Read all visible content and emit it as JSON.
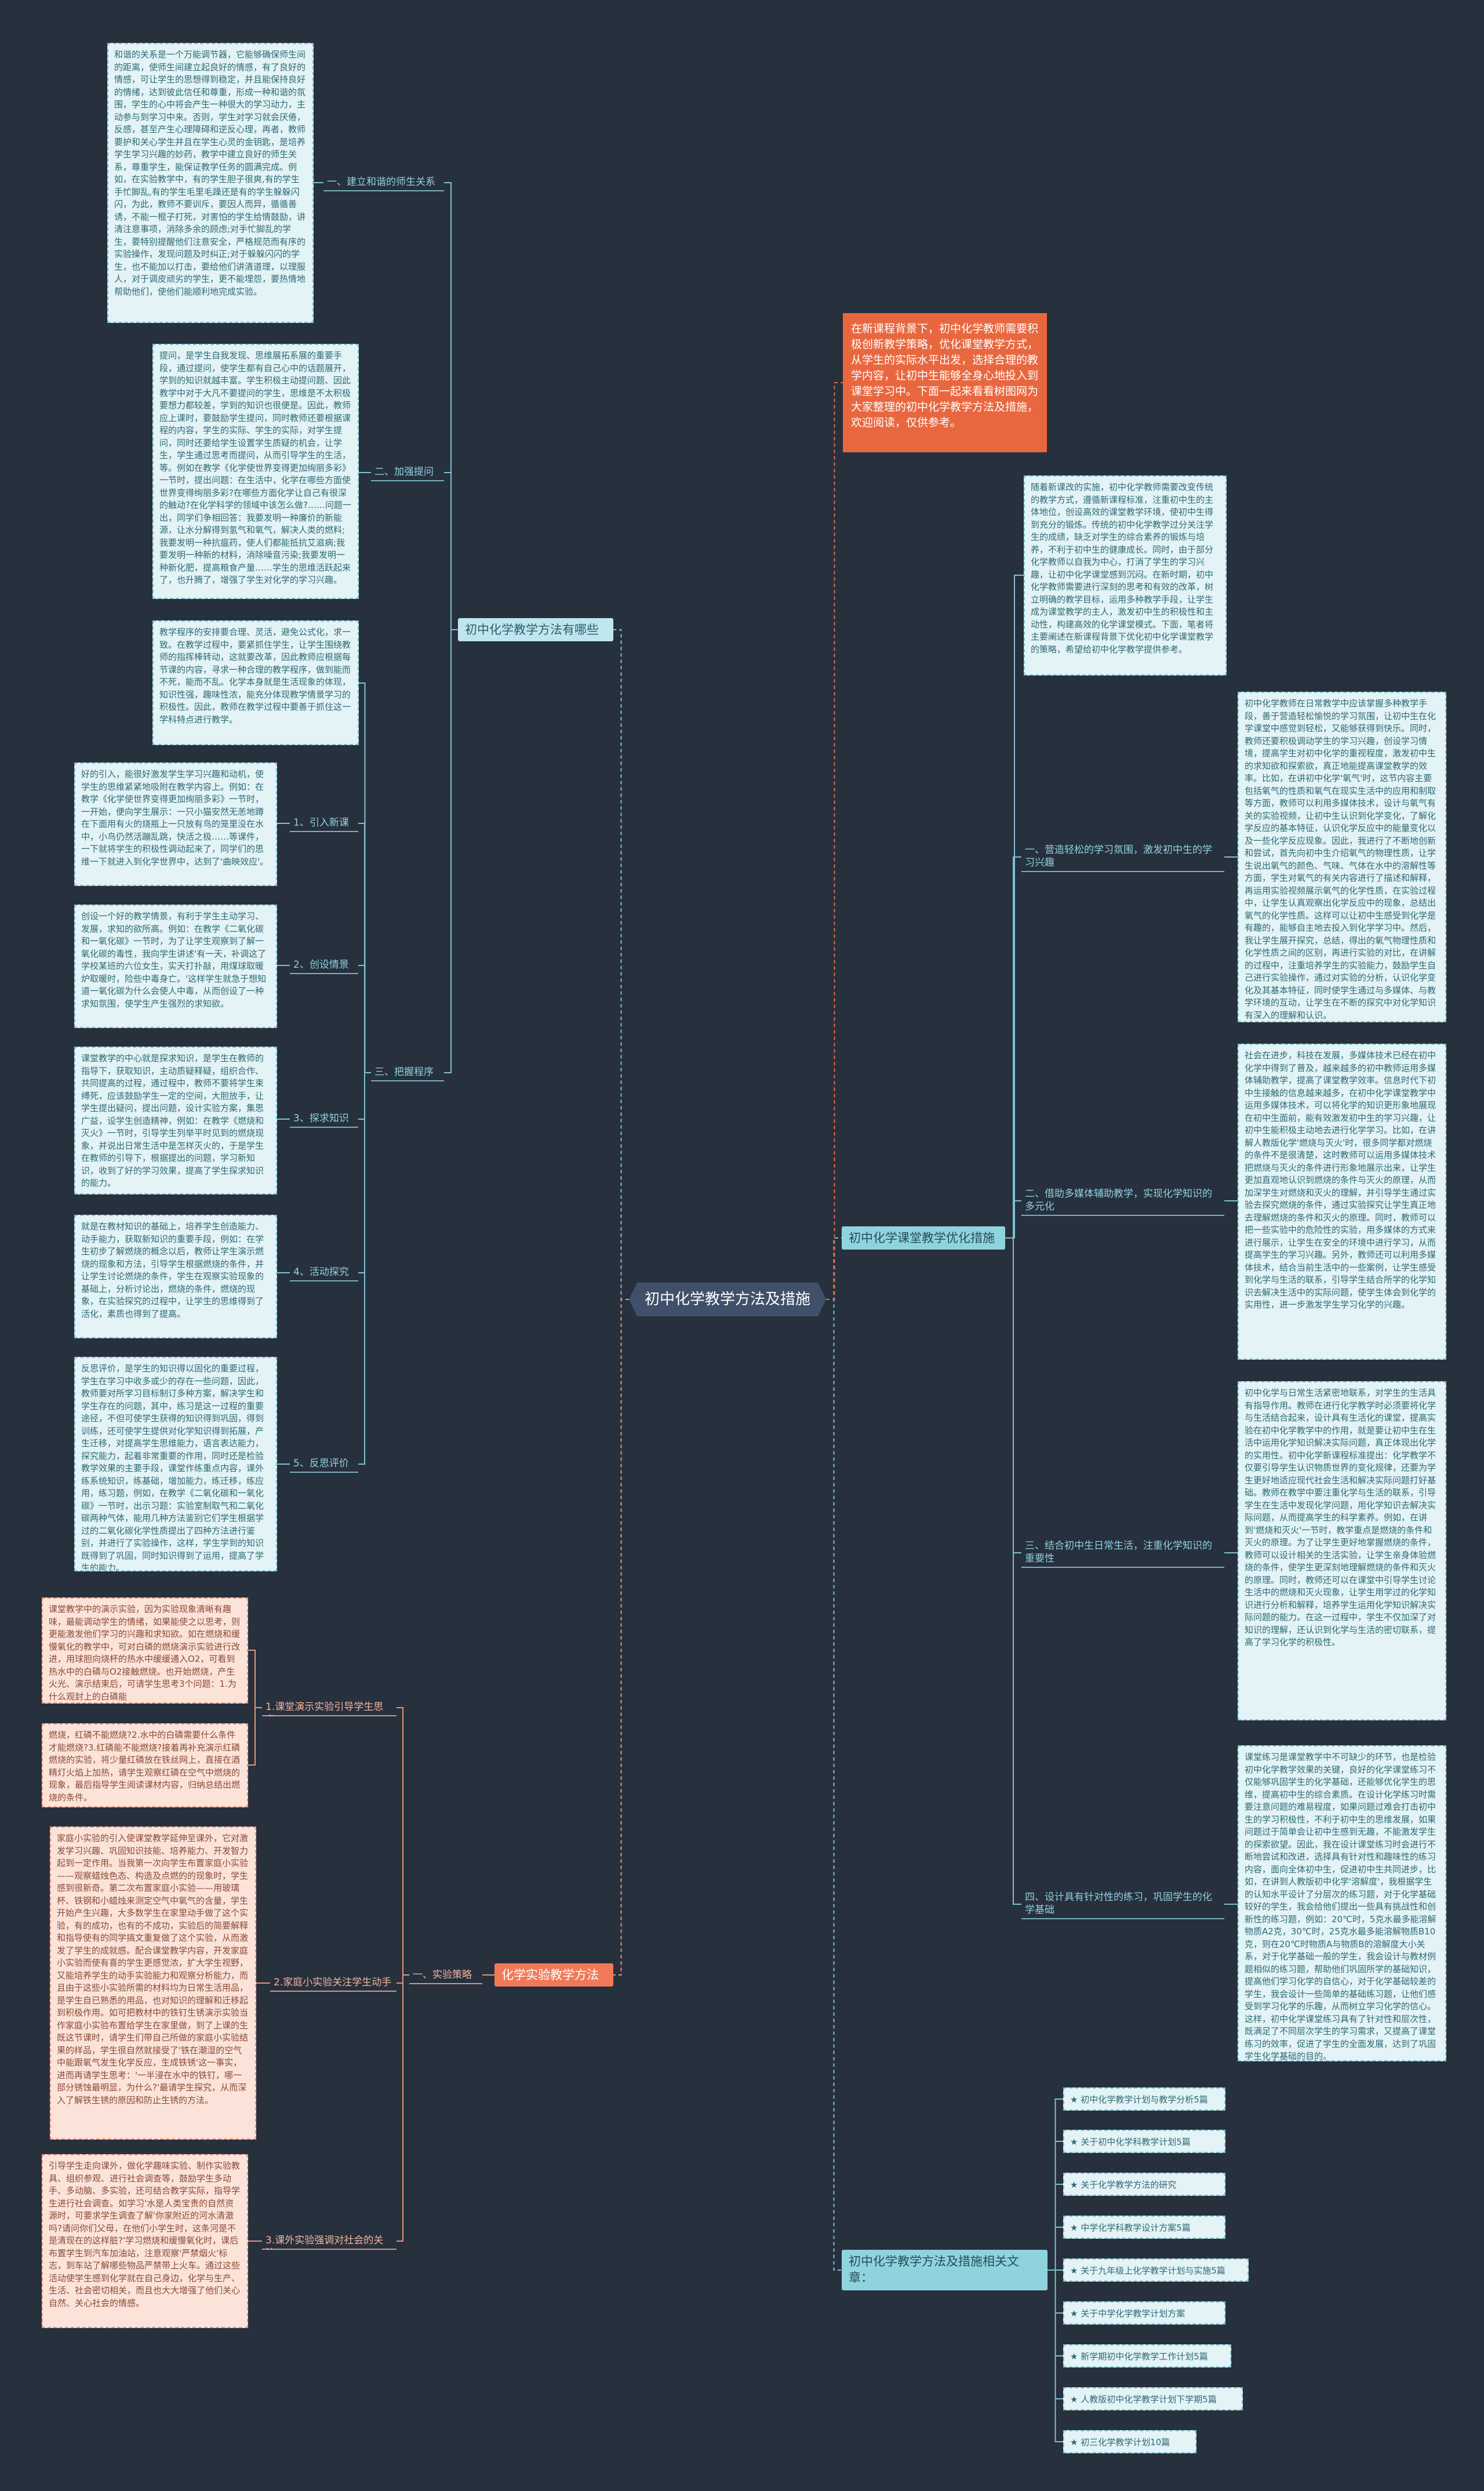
{
  "center": "初中化学教学方法及措施",
  "intro": "在新课程背景下，初中化学教师需要积极创新教学策略，优化课堂教学方式，从学生的实际水平出发，选择合理的教学内容，让初中生能够全身心地投入到课堂学习中。下面一起来看看树图网为大家整理的初中化学教学方法及措施，欢迎阅读，仅供参考。",
  "left": {
    "methods": {
      "title": "初中化学教学方法有哪些",
      "sub1": {
        "label": "一、建立和谐的师生关系",
        "text": "和谐的关系是一个万能调节器，它能够确保师生间的距离，使师生间建立起良好的情感，有了良好的情感，可让学生的思想得到稳定，并且能保持良好的情绪，达到彼此信任和尊重，形成一种和谐的氛围，学生的心中将会产生一种很大的学习动力，主动参与到学习中来。否则，学生对学习就会厌倦，反感，甚至产生心理障碍和逆反心理，再者，教师要护和关心学生并且在学生心灵的金钥匙，是培养学生学习兴趣的妙药，教学中建立良好的师生关系，尊重学生，能保证教学任务的圆满完成。例如，在实验教学中，有的学生胆子很爽,有的学生手忙脚乱,有的学生毛里毛躁还是有的学生躲躲闪闪，为此，教师不要训斥，要因人而异，循循善诱，不能一棍子打死，对害怕的学生给情鼓励，讲清注意事项，消除多余的顾虑;对手忙脚乱的学生，要特别提醒他们注意安全，严格规范而有序的实验操作，发现问题及时纠正;对于躲躲闪闪的学生，也不能加以打击，要给他们讲清道理，以理服人，对于调皮顽劣的学生，更不能埋怨，要热情地帮助他们，使他们能顺利地完成实验。"
      },
      "sub2": {
        "label": "二、加强提问",
        "text": "提问，是学生自我发现、思维展拓系展的重要手段，通过提问，使学生都有自己心中的话题展开，学到的知识就越丰富。学生积极主动提问题、因此教学中对于大凡不要提问的学生，思维是不太积极要想力都较差，学到的知识也很便是。因此，教师应上课时，要鼓励学生提问，同时教师还要根据课程的内容，学生的实际、学生的实际，对学生提问，同时还要给学生设置学生质疑的机会，让学生，学生通过思考而提问，从而引导学生的生活，等。例如在教学《化学使世界变得更加绚丽多彩》一节时，提出问题：在生活中，化学在哪些方面使世界变得绚丽多彩?在哪些方面化学让自己有很深的触动?在化学科学的领域中该怎么做?……问题一出，同学们争相回答：我要发明一种廉价的新能源，让水分解得到氢气和氧气，解决人类的燃料;我要发明一种抗瘟药，使人们都能抵抗艾滋病;我要发明一种新的材料，消除噪音污染;我要发明一种新化肥，提高粮食产量……学生的思维活跃起来了，也升腾了，增强了学生对化学的学习兴趣。"
      },
      "sub3": {
        "label": "三、把握程序",
        "text": "教学程序的安排要合理、灵活，避免公式化，求一致。在教学过程中，要紧抓住学生，让学生围绕教师的指挥棒转动，这就要改革，因此教师应根据每节课的内容，寻求一种合理的教学程序，做到能而不死，能而不乱。化学本身就是生活现象的体现，知识性强，趣味性浓，能充分体现教学情景学习的积极性。因此，教师在教学过程中要善于抓住这一学科特点进行教学。",
        "steps": [
          {
            "label": "1、引入新课",
            "text": "好的引入，能很好激发学生学习兴趣和动机，使学生的思维紧紧地吸附在教学内容上。例如：在教学《化学使世界变得更加绚丽多彩》一节时，一开始，便向学生展示：一只小猫安然无恙地蹲在下面用有火的烧瓶上一只放有鸟的笼里没在水中，小鸟仍然活蹦乱跳，快活之极……等课件，一下就将学生的积极性调动起来了，同学们的思维一下就进入到化学世界中，达到了'曲映效应'。"
          },
          {
            "label": "2、创设情景",
            "text": "创设一个好的教学情景，有利于学生主动学习、发展，求知的欲所高。例如：在教学《二氧化碳和一氧化碳》一节时，为了让学生观察到了解一氧化碳的毒性，我向学生讲述'有一天，补调这了学校某班的六位女生，实天打扑敲，用煤球取暖炉取暖时，险些中毒身亡。'这样学生就急于想知道一氧化碳为什么会使人中毒，从而创设了一种求知氛围，使学生产生强烈的求知欲。"
          },
          {
            "label": "3、探求知识",
            "text": "课堂教学的中心就是探求知识，是学生在教师的指导下，获取知识，主动质疑释疑，组织合作、共同提高的过程，通过程中，教师不要将学生束缚死，应该鼓励学生一定的空间，大胆放手，让学生提出疑问，提出问题，设计实验方案，集思广益，设学生创造精神，例如：在教学《燃烧和灭火》一节时，引导学生列举平时见到的燃烧现象，并说出日常生活中是怎样灭火的，于是学生在教师的引导下，根据提出的问题，学习新知识，收到了好的学习效果，提高了学生探求知识的能力。"
          },
          {
            "label": "4、活动探究",
            "text": "就是在教材知识的基础上，培养学生创造能力、动手能力，获取新知识的重要手段，例如：在学生初步了解燃烧的概念以后，教师让学生演示燃烧的现象和方法，引导学生根据燃烧的条件，并让学生讨论燃烧的条件，学生在观察实验现象的基础上，分析讨论出，燃烧的条件，燃烧的现象，在实验探究的过程中，让学生的思维得到了活化，素质也得到了提高。"
          },
          {
            "label": "5、反思评价",
            "text": "反思评价，是学生的知识得以固化的重要过程，学生在学习中收多或少的存在一些问题，因此，教师要对所学习目标制订多种方案，解决学生和学生存在的问题，其中，练习是这一过程的重要途径，不但可使学生获得的知识得到巩固，得到训练，还可使学生提供对化学知识得到拓展，产生迁移，对提高学生思维能力，语言表达能力，探究能力，起着非常重要的作用，同时还是检验教学效果的主要手段，课堂作练重点内容，课外练系统知识，练基础，增加能力，练迁移，练应用，练习题，例如，在教学《二氧化碳和一氧化碳》一节时，出示习题：实验室制取气和二氧化碳两种气体，能用几种方法鉴别它们学生根据学过的二氧化碳化学性质提出了四种方法进行鉴别，并进行了实验操作，这样，学生学到的知识既得到了巩固，同时知识得到了运用，提高了学生的能力。"
          }
        ]
      }
    },
    "chem": {
      "title": "化学实验教学方法",
      "sub": {
        "label": "一、实验策略",
        "items": [
          {
            "label": "1.课堂演示实验引导学生思考",
            "texts": [
              "课堂教学中的演示实验，因为实验现象清晰有趣味，最能调动学生的情绪，如果能使之以思考，则更能激发他们学习的兴趣和求知欲。如在燃烧和缓慢氧化的教学中，可对白磷的燃烧演示实验进行改进，用球胆向烧杯的热水中缓缓通入O2，可看到热水中的白磷与O2接触燃烧。也开始燃烧，产生火光、演示结束后，可请学生思考3个问题：1.为什么观封上的白磷能",
              "燃烧，红磷不能燃烧?2.水中的白磷需要什么条件才能燃烧?3.红磷能不能燃烧?接着再补充演示红磷燃烧的实验，将少量红磷放在铁丝网上，直接在酒精灯火焰上加热，请学生观察红磷在空气中燃烧的现象，最后指导学生阅读课材内容，归纳总结出燃烧的条件。"
            ]
          },
          {
            "label": "2.家庭小实验关注学生动手",
            "texts": [
              "家庭小实验的引入使课堂教学延伸至课外，它对激发学习兴趣、巩固知识技能、培养能力、开发智力起到一定作用。当我第一次向学生布置家庭小实验——观察蜡烛色态、构造及点燃的的现象时，学生感到很新奇。第二次布置家庭小实验——用玻璃杯、铁钢和小蜡烛来测定空气中氧气的含量，学生开始产生兴趣，大多数学生在家里动手做了这个实验，有的成功，也有的不成功，实验后的简要解释和指导使有的同学搞文重复做了这个实验，从而激发了学生的成就感。配合课堂教学内容，开发家庭小实验而使有喜的学生更感觉浓，扩大学生视野，又能培养学生的动手实验能力和观察分析能力，而且由于这些小实验所需的材料均为日常生活用品，是学生自已熟悉的用品，也对知识的理解和迁移起到积极作用。如可把教材中的铁钉生锈演示实验当作家庭小实验布置给学生在家里做，到了上课的生既这节课时，请学生们带自己所做的家庭小实验结果的样品，学生很自然就接受了'铁在潮湿的空气中能跟氧气发生化学反应，生成铁锈'这一事实，进而再请学生思考：'一半浸在水中的铁钉，哪一部分锈蚀最明显，为什么?'最请学生探究，从而深入了解铁生锈的原因和防止生锈的方法。"
            ]
          },
          {
            "label": "3.课外实验强调对社会的关注",
            "texts": [
              "引导学生走向课外，做化学趣味实验、制作实验教具、组织参观、进行社会调查等，鼓励学生多动手、多动脑、多实验，还可结合教学实际，指导学生进行社会调查。如学习'水是人类宝贵的自然资源时，可要求学生调查了解'你家附近的河水清澈吗?请问你们父母，在他们小学生时，这条河是不是清现在的这样脏?'学习燃烧和缓慢氧化时，课后布置学生到汽车加油站，注意观察'严禁烟火'标志，到车站了解哪些物品严禁带上火车。通过这些活动使学生感到化学就在自己身边，化学与生产、生活、社会密切相关，而且也大大增强了他们关心自然、关心社会的情感。"
            ]
          }
        ]
      }
    }
  },
  "right": {
    "measures": {
      "title": "初中化学课堂教学优化措施",
      "preface": "随着新课改的实施，初中化学教师需要改变传统的教学方式，遵循新课程标准，注重初中生的主体地位，创设高效的课堂教学环境，使初中生得到充分的锻炼。传统的初中化学教学过分关注学生的成绩，缺乏对学生的综合素养的锻炼与培养，不利于初中生的健康成长。同时，由于部分化学教师以自我为中心，打消了学生的学习兴趣，让初中化学课堂感到沉闷。在新时期，初中化学教师需要进行深刻的思考和有效的改革，树立明确的教学目标，运用多种教学手段，让学生成为课堂教学的主人，激发初中生的积极性和主动性，构建高效的化学课堂模式。下面，笔者将主要阐述在新课程背景下优化初中化学课堂教学的策略，希望给初中化学教学提供参考。",
      "items": [
        {
          "label": "一、营造轻松的学习氛围，激发初中生的学习兴趣",
          "text": "初中化学教师在日常教学中应该掌握多种教学手段，善于营造轻松愉悦的学习氛围，让初中生在化学课堂中感觉到轻松，又能够获得到快乐。同时，教师还要积极调动学生的学习兴趣，创设学习情境，提高学生对初中化学的重视程度，激发初中生的求知欲和探索欲，真正地能提高课堂教学的效率。比如，在讲初中化学'氧气'时，这节内容主要包括氧气的性质和氧气在现实生活中的应用和制取等方面，教师可以利用多媒体技术，设计与氧气有关的实验视频，让初中生认识到化学变化，了解化学反应的基本特征，认识化学反应中的能量变化以及一些化学反应现象。因此，我进行了不断地创新和尝试，首先向初中生介绍氧气的物理性质，让学生说出氧气的颜色、气味、气体在水中的溶解性等方面，学生对氧气的有关内容进行了描述和解释，再运用实验视频展示氧气的化学性质，在实验过程中，让学生认真观察出化学反应中的现象，总结出氧气的化学性质。这样可以让初中生感受到化学是有趣的，能够自主地去投入到化学学习中。然后，我让学生展开探究，总结，得出的氧气物理性质和化学性质之间的区别，再进行实验的对比，在讲解的过程中，注重培养学生的实验能力，鼓励学生自己进行实验操作，通过对实验的分析，认识化学变化及其基本特征，同时使学生通过与多媒体、与教学环境的互动，让学生在不断的探究中对化学知识有深入的理解和认识。"
        },
        {
          "label": "二、借助多媒体辅助教学，实现化学知识的多元化",
          "text": "社会在进步，科技在发展，多媒体技术已经在初中化学中得到了普及，越来越多的初中教师运用多媒体辅助教学，提高了课堂教学效率。信息时代下初中生接触的信息越来越多，在初中化学课堂教学中运用多媒体技术，可以将化学的知识更形象地展现在初中生面前，能有效激发初中生的学习兴趣，让初中生能积极主动地去进行化学学习。比如，在讲解人教版化学'燃烧与灭火'时，很多同学都对燃烧的条件不是很清楚，这时教师可以运用多媒体技术把燃烧与灭火的条件进行形象地展示出来，让学生更加直观地认识到燃烧的条件与灭火的原理，从而加深学生对燃烧和灭火的理解，并引导学生通过实验去探究燃烧的条件，通过实验探究让学生真正地去理解燃烧的条件和灭火的原理。同时，教师可以把一些实验中的危险性的实验，用多媒体的方式来进行展示，让学生在安全的环境中进行学习，从而提高学生的学习兴趣。另外，教师还可以利用多媒体技术，结合当前生活中的一些案例，让学生感受到化学与生活的联系，引导学生结合所学的化学知识去解决生活中的实际问题，使学生体会到化学的实用性，进一步激发学生学习化学的兴趣。"
        },
        {
          "label": "三、结合初中生日常生活，注重化学知识的重要性",
          "text": "初中化学与日常生活紧密地联系，对学生的生活具有指导作用。教师在进行化学教学时必须要将化学与生活结合起来，设计具有生活化的课堂，提高实验在初中化学教学中的作用，就是要让初中生在生活中运用化学知识解决实际问题，真正体现出化学的实用性。初中化学新课程标准提出：化学教学不仅要引导学生认识物质世界的变化规律，还要为学生更好地适应现代社会生活和解决实际问题打好基础。教师在教学中要注重化学与生活的联系，引导学生在生活中发现化学问题，用化学知识去解决实际问题，从而提高学生的科学素养。例如，在讲到'燃烧和灭火'一节时，教学重点是燃烧的条件和灭火的原理。为了让学生更好地掌握燃烧的条件，教师可以设计相关的生活实验，让学生亲身体验燃烧的条件，使学生更深刻地理解燃烧的条件和灭火的原理。同时，教师还可以在课堂中引导学生讨论生活中的燃烧和灭火现象，让学生用学过的化学知识进行分析和解释，培养学生运用化学知识解决实际问题的能力。在这一过程中，学生不仅加深了对知识的理解，还认识到化学与生活的密切联系，提高了学习化学的积极性。"
        },
        {
          "label": "四、设计具有针对性的练习，巩固学生的化学基础",
          "text": "课堂练习是课堂教学中不可缺少的环节，也是检验初中化学教学效果的关键，良好的化学课堂练习不仅能够巩固学生的化学基础，还能够优化学生的思维，提高初中生的综合素质。在设计化学练习时需要注意问题的难易程度，如果问题过难会打击初中生的学习积极性，不利于初中生的思维发展，如果问题过于简单会让初中生感到无趣，不能激发学生的探索欲望。因此，我在设计课堂练习时会进行不断地尝试和改进，选择具有针对性和趣味性的练习内容，面向全体初中生，促进初中生共同进步，比如，在讲到人教版初中化学'溶解度'，我根据学生的认知水平设计了分层次的练习题，对于化学基础较好的学生，我会给他们提出一些具有挑战性和创新性的练习题，例如：20℃时，5克水最多能溶解物质A2克，30℃时，25克水最多能溶解物质B10克，则在20℃时物质A与物质B的溶解度大小关系，对于化学基础一般的学生，我会设计与教材例题相似的练习题，帮助他们巩固所学的基础知识，提高他们学习化学的自信心，对于化学基础较差的学生，我会设计一些简单的基础练习题，让他们感受到学习化学的乐趣，从而树立学习化学的信心。这样，初中化学课堂练习具有了针对性和层次性，既满足了不同层次学生的学习需求，又提高了课堂练习的效率，促进了学生的全面发展，达到了巩固学生化学基础的目的。"
        }
      ]
    },
    "related": {
      "title": "初中化学教学方法及措施相关文章：",
      "items": [
        "★ 初中化学教学计划与教学分析5篇",
        "★ 关于初中化学科教学计划5篇",
        "★ 关于化学教学方法的研究",
        "★ 中学化学科教学设计方案5篇",
        "★ 关于九年级上化学教学计划与实施5篇",
        "★ 关于中学化学教学计划方案",
        "★ 新学期初中化学教学工作计划5篇",
        "★ 人教版初中化学教学计划下学期5篇",
        "★ 初三化学教学计划10篇"
      ]
    }
  },
  "colors": {
    "background": "#27303d",
    "accent": "#f07a57",
    "teal": "#7fc2d0"
  }
}
